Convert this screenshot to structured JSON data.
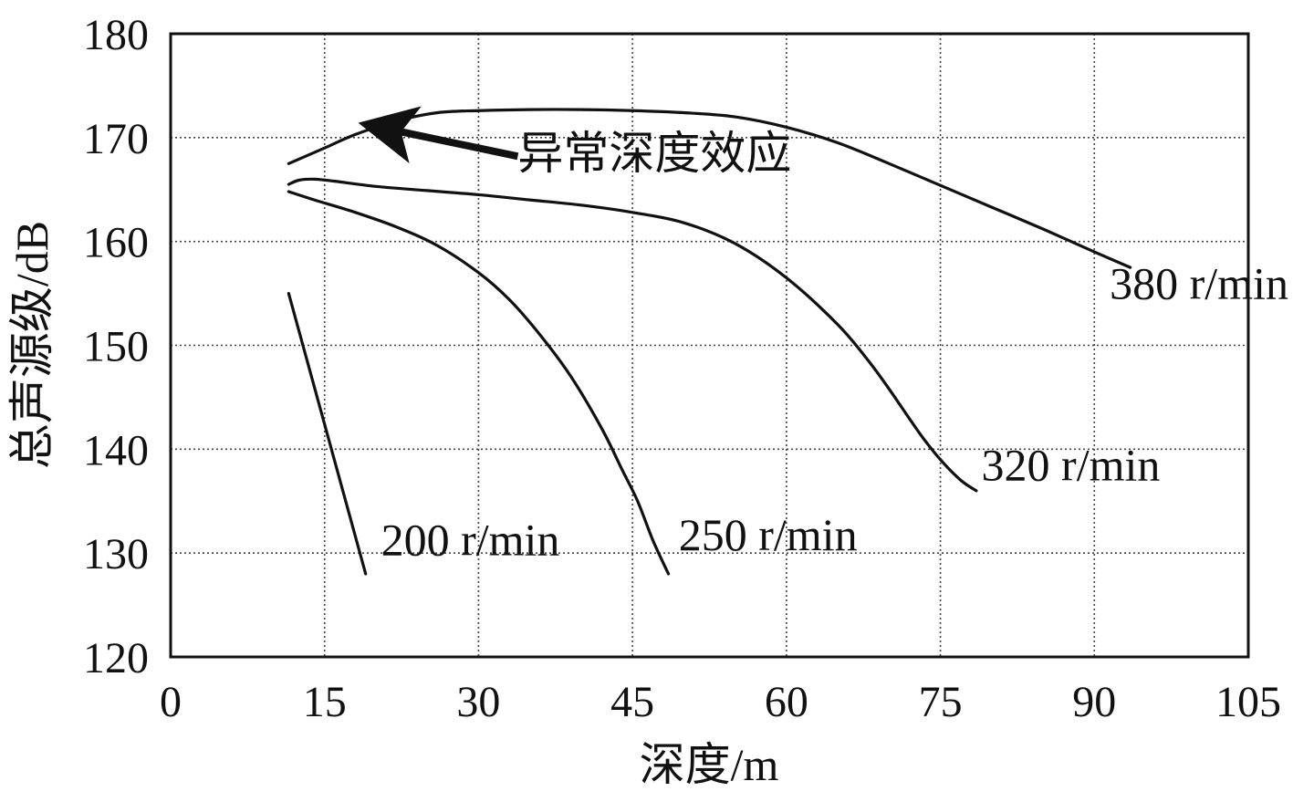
{
  "chart_data": {
    "type": "line",
    "xlabel": "深度/m",
    "ylabel": "总声源级/dB",
    "xlim": [
      0,
      105
    ],
    "ylim": [
      120,
      180
    ],
    "xticks": [
      0,
      15,
      30,
      45,
      60,
      75,
      90,
      105
    ],
    "yticks": [
      120,
      130,
      140,
      150,
      160,
      170,
      180
    ],
    "grid": true,
    "series": [
      {
        "name": "380 r/min",
        "x": [
          11.5,
          15,
          18,
          22,
          26,
          30,
          35,
          40,
          45,
          50,
          55,
          60,
          65,
          70,
          75,
          80,
          85,
          90,
          93.5
        ],
        "y": [
          167.5,
          169,
          170.3,
          171.6,
          172.4,
          172.6,
          172.7,
          172.7,
          172.6,
          172.4,
          172.0,
          171.0,
          169.5,
          167.5,
          165.4,
          163.3,
          161.2,
          159.0,
          157.5
        ]
      },
      {
        "name": "320 r/min",
        "x": [
          11.5,
          12.5,
          14,
          16,
          20,
          25,
          30,
          35,
          40,
          45,
          50,
          55,
          60,
          65,
          68,
          70,
          73,
          75,
          77,
          78.5
        ],
        "y": [
          165.5,
          165.9,
          166.0,
          165.8,
          165.3,
          164.9,
          164.5,
          164.0,
          163.5,
          162.8,
          161.8,
          159.8,
          156.5,
          152.0,
          148.5,
          145.8,
          141.5,
          139.0,
          137.0,
          136.0
        ]
      },
      {
        "name": "250 r/min",
        "x": [
          11.5,
          14,
          18,
          22,
          26,
          30,
          33,
          36,
          39,
          42,
          44,
          45.5,
          47,
          48.5
        ],
        "y": [
          164.8,
          164.0,
          162.8,
          161.4,
          159.6,
          157.0,
          154.4,
          151.0,
          147.0,
          142.0,
          138.0,
          135.0,
          131.2,
          128.0
        ]
      },
      {
        "name": "200 r/min",
        "x": [
          11.5,
          19
        ],
        "y": [
          155,
          128
        ]
      }
    ],
    "labels": [
      {
        "text": "380 r/min",
        "x": 91.5,
        "y": 154.5
      },
      {
        "text": "320 r/min",
        "x": 79,
        "y": 137
      },
      {
        "text": "250 r/min",
        "x": 49.5,
        "y": 130.3
      },
      {
        "text": "200 r/min",
        "x": 20.5,
        "y": 129.8
      }
    ],
    "annotation": {
      "text": "异常深度效应",
      "text_x": 34,
      "text_y": 167,
      "arrow_from": [
        34,
        168.2
      ],
      "arrow_to": [
        20.5,
        171
      ]
    }
  }
}
